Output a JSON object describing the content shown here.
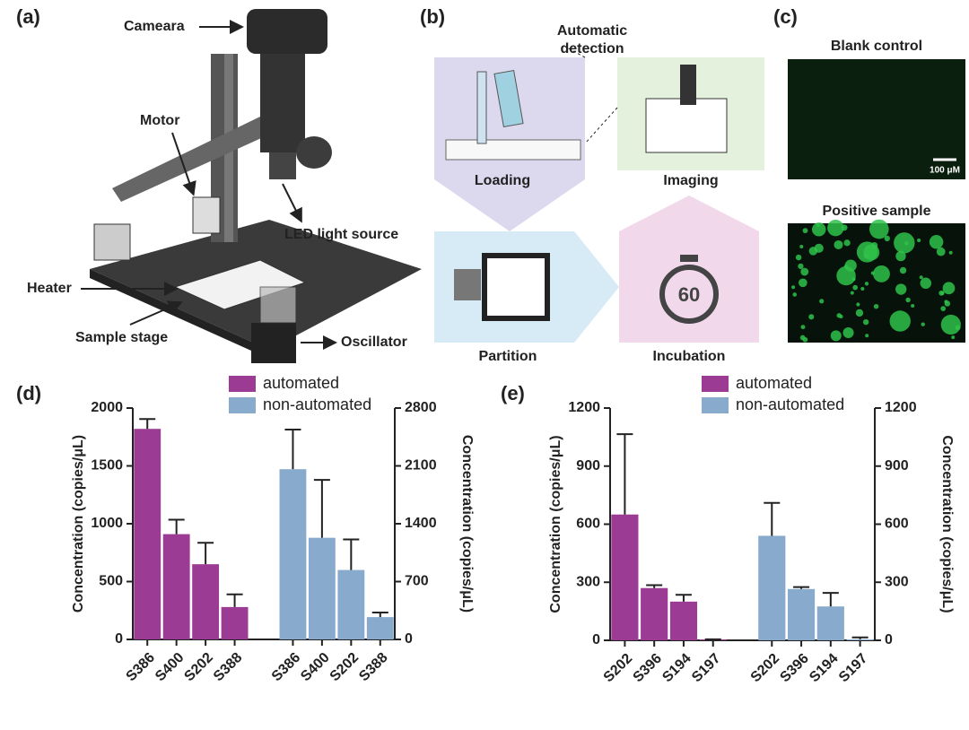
{
  "panels": {
    "a": {
      "label": "(a)",
      "annotations": [
        "Cameara",
        "Motor",
        "LED light source",
        "Heater",
        "Sample stage",
        "Oscillator"
      ]
    },
    "b": {
      "label": "(b)",
      "detection": [
        "Automatic",
        "detection"
      ],
      "steps": [
        "Loading",
        "Imaging",
        "Partition",
        "Incubation"
      ],
      "timer": "60"
    },
    "c": {
      "label": "(c)",
      "images": [
        "Blank control",
        "Positive sample"
      ],
      "scale_bar": "100 μM"
    },
    "d": {
      "label": "(d)"
    },
    "e": {
      "label": "(e)"
    }
  },
  "chart_data": [
    {
      "type": "bar",
      "y_label": "Concentration (copies/μL)",
      "y2_label": "Concentration (copies/μL)",
      "categories": [
        "S386",
        "S400",
        "S202",
        "S388",
        "S386",
        "S400",
        "S202",
        "S388"
      ],
      "series": [
        {
          "name": "automated",
          "color": "#9b3b94",
          "axis": "y",
          "values": [
            1820,
            910,
            650,
            280,
            null,
            null,
            null,
            null
          ],
          "errors": [
            85,
            125,
            185,
            110,
            null,
            null,
            null,
            null
          ]
        },
        {
          "name": "non-automated",
          "color": "#87aacd",
          "axis": "y2",
          "values": [
            null,
            null,
            null,
            null,
            2060,
            1230,
            840,
            270
          ],
          "errors": [
            null,
            null,
            null,
            null,
            480,
            700,
            370,
            55
          ]
        }
      ],
      "ylim": [
        0,
        2000
      ],
      "yticks": [
        0,
        500,
        1000,
        1500,
        2000
      ],
      "y2lim": [
        0,
        2800
      ],
      "y2ticks": [
        0,
        700,
        1400,
        2100,
        2800
      ]
    },
    {
      "type": "bar",
      "y_label": "Concentration (copies/μL)",
      "y2_label": "Concentration (copies/μL)",
      "categories": [
        "S202",
        "S396",
        "S194",
        "S197",
        "S202",
        "S396",
        "S194",
        "S197"
      ],
      "series": [
        {
          "name": "automated",
          "color": "#9b3b94",
          "axis": "y",
          "values": [
            650,
            270,
            200,
            5,
            null,
            null,
            null,
            null
          ],
          "errors": [
            415,
            15,
            35,
            0,
            null,
            null,
            null,
            null
          ]
        },
        {
          "name": "non-automated",
          "color": "#87aacd",
          "axis": "y2",
          "values": [
            null,
            null,
            null,
            null,
            540,
            265,
            175,
            5
          ],
          "errors": [
            null,
            null,
            null,
            null,
            170,
            10,
            70,
            10
          ]
        }
      ],
      "ylim": [
        0,
        1200
      ],
      "yticks": [
        0,
        300,
        600,
        900,
        1200
      ],
      "y2lim": [
        0,
        1200
      ],
      "y2ticks": [
        0,
        300,
        600,
        900,
        1200
      ]
    }
  ]
}
